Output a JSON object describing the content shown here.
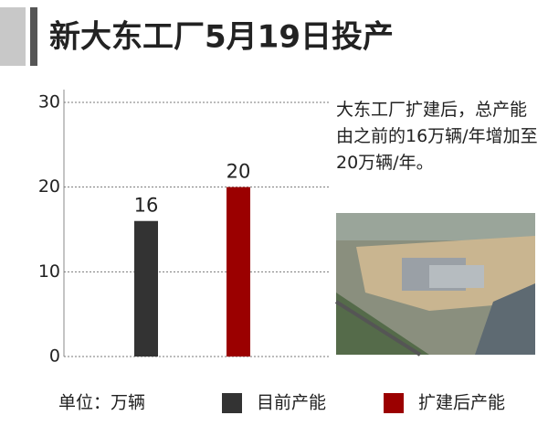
{
  "chart_data": {
    "type": "bar",
    "title": "新大东工厂5月19日投产",
    "annotation": "大东工厂扩建后，总产能由之前的16万辆/年增加至20万辆/年。",
    "unit_label": "单位：万辆",
    "series": [
      {
        "name": "目前产能",
        "color": "#333333",
        "values": [
          16
        ]
      },
      {
        "name": "扩建后产能",
        "color": "#9b0000",
        "values": [
          20
        ]
      }
    ],
    "ylim": [
      0,
      30
    ],
    "yticks": [
      0,
      10,
      20,
      30
    ],
    "grid": true
  }
}
